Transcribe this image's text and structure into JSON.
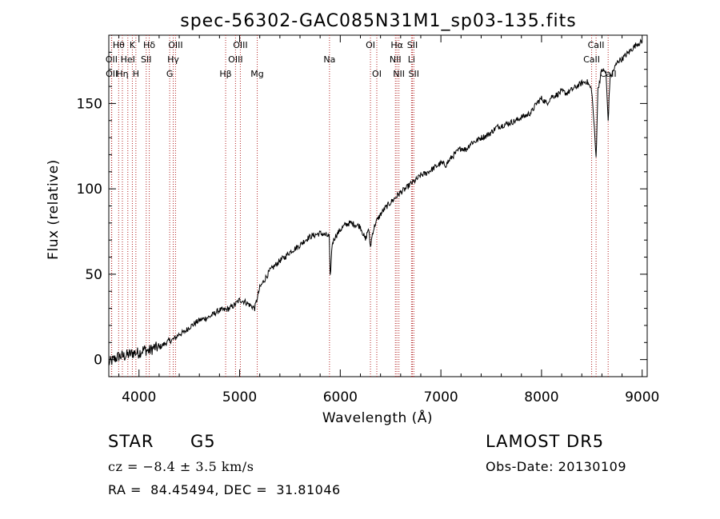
{
  "chart_data": {
    "type": "line",
    "title": "spec-56302-GAC085N31M1_sp03-135.fits",
    "xlabel": "Wavelength (Å)",
    "ylabel": "Flux (relative)",
    "xlim": [
      3700,
      9050
    ],
    "ylim": [
      -10,
      190
    ],
    "x_ticks": [
      4000,
      5000,
      6000,
      7000,
      8000,
      9000
    ],
    "y_ticks": [
      0,
      50,
      100,
      150
    ],
    "grid": false,
    "line_color": "#000000",
    "marker_color": "#b22222",
    "series": [
      {
        "x": [
          3700,
          3750,
          3800,
          3850,
          3900,
          3950,
          4000,
          4050,
          4100,
          4150,
          4200,
          4250,
          4300,
          4350,
          4400,
          4450,
          4500,
          4550,
          4600,
          4650,
          4700,
          4750,
          4800,
          4850,
          4900,
          4950,
          5000,
          5050,
          5100,
          5150,
          5200,
          5250,
          5300,
          5350,
          5400,
          5450,
          5500,
          5550,
          5600,
          5650,
          5700,
          5750,
          5800,
          5850,
          5890,
          5900,
          5920,
          5950,
          6000,
          6050,
          6100,
          6150,
          6200,
          6250,
          6280,
          6300,
          6320,
          6350,
          6400,
          6450,
          6500,
          6550,
          6600,
          6650,
          6700,
          6750,
          6800,
          6850,
          6900,
          6950,
          7000,
          7050,
          7100,
          7150,
          7200,
          7250,
          7300,
          7350,
          7400,
          7450,
          7500,
          7550,
          7600,
          7650,
          7700,
          7750,
          7800,
          7850,
          7900,
          7950,
          8000,
          8050,
          8100,
          8150,
          8200,
          8250,
          8300,
          8350,
          8400,
          8450,
          8498,
          8520,
          8542,
          8560,
          8600,
          8640,
          8662,
          8680,
          8720,
          8760,
          8800,
          8850,
          8900,
          8950,
          9000
        ],
        "y": [
          -2,
          0,
          2,
          2,
          3,
          4,
          4,
          6,
          5,
          7,
          7,
          9,
          11,
          12,
          15,
          16,
          19,
          21,
          23,
          24,
          25,
          27,
          29,
          29,
          30,
          32,
          35,
          34,
          32,
          30,
          42,
          47,
          52,
          55,
          58,
          60,
          63,
          65,
          67,
          70,
          72,
          73,
          74,
          73,
          72,
          48,
          68,
          72,
          76,
          79,
          80,
          79,
          78,
          70,
          77,
          66,
          74,
          80,
          85,
          89,
          92,
          95,
          98,
          100,
          103,
          105,
          108,
          109,
          111,
          113,
          115,
          114,
          118,
          121,
          124,
          123,
          127,
          128,
          130,
          131,
          133,
          136,
          137,
          138,
          139,
          140,
          142,
          143,
          145,
          150,
          153,
          150,
          154,
          155,
          157,
          156,
          158,
          160,
          162,
          163,
          158,
          140,
          118,
          158,
          170,
          168,
          140,
          165,
          170,
          175,
          176,
          179,
          182,
          185,
          186
        ]
      }
    ],
    "line_markers": [
      {
        "wl": 3798,
        "label": "Hθ",
        "row": 0
      },
      {
        "wl": 3727,
        "label": "OII",
        "row": 1
      },
      {
        "wl": 3729,
        "label": "OII",
        "row": 2
      },
      {
        "wl": 3835,
        "label": "Hη",
        "row": 2
      },
      {
        "wl": 3889,
        "label": "HeI",
        "row": 1
      },
      {
        "wl": 3934,
        "label": "K",
        "row": 0
      },
      {
        "wl": 3969,
        "label": "H",
        "row": 2
      },
      {
        "wl": 4102,
        "label": "Hδ",
        "row": 0
      },
      {
        "wl": 4072,
        "label": "SII",
        "row": 1
      },
      {
        "wl": 4340,
        "label": "Hγ",
        "row": 1
      },
      {
        "wl": 4363,
        "label": "OIII",
        "row": 0
      },
      {
        "wl": 4305,
        "label": "G",
        "row": 2
      },
      {
        "wl": 4861,
        "label": "Hβ",
        "row": 2
      },
      {
        "wl": 4959,
        "label": "OIII",
        "row": 1
      },
      {
        "wl": 5007,
        "label": "OIII",
        "row": 0
      },
      {
        "wl": 5175,
        "label": "Mg",
        "row": 2
      },
      {
        "wl": 5893,
        "label": "Na",
        "row": 1
      },
      {
        "wl": 6300,
        "label": "OI",
        "row": 0
      },
      {
        "wl": 6363,
        "label": "OI",
        "row": 2
      },
      {
        "wl": 6548,
        "label": "NII",
        "row": 1
      },
      {
        "wl": 6563,
        "label": "Hα",
        "row": 0
      },
      {
        "wl": 6583,
        "label": "NII",
        "row": 2
      },
      {
        "wl": 6708,
        "label": "Li",
        "row": 1
      },
      {
        "wl": 6717,
        "label": "SII",
        "row": 0
      },
      {
        "wl": 6731,
        "label": "SII",
        "row": 2
      },
      {
        "wl": 8498,
        "label": "CaII",
        "row": 1
      },
      {
        "wl": 8542,
        "label": "CaII",
        "row": 0
      },
      {
        "wl": 8662,
        "label": "CaII",
        "row": 2
      }
    ]
  },
  "info": {
    "object_class": "STAR",
    "subclass": "G5",
    "cz_line": "cz = −8.4 ± 3.5 km/s",
    "coords_line": "RA =  84.45494, DEC =  31.81046",
    "survey": "LAMOST DR5",
    "obs_date": "Obs-Date: 20130109"
  }
}
